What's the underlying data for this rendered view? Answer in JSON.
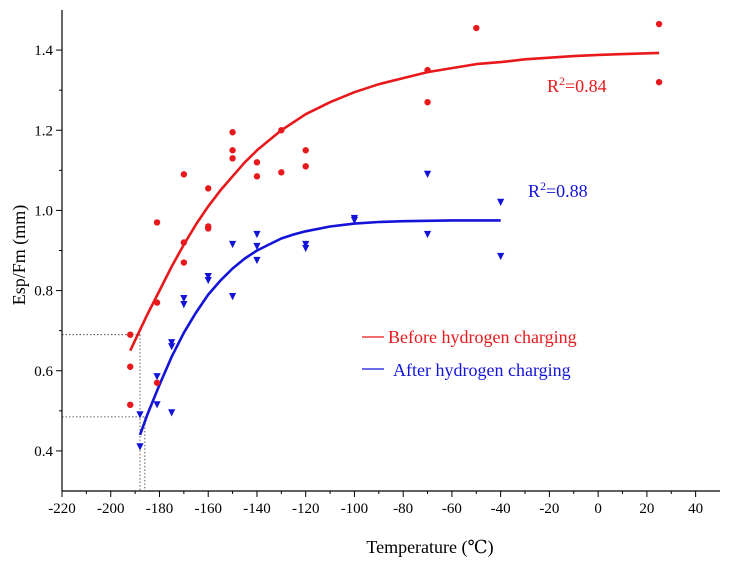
{
  "chart_data": {
    "type": "scatter",
    "xlabel": "Temperature (℃)",
    "ylabel": "Esp/Fm (mm)",
    "xlim": [
      -220,
      50
    ],
    "ylim": [
      0.3,
      1.5
    ],
    "xticks": [
      -220,
      -200,
      -180,
      -160,
      -140,
      -120,
      -100,
      -80,
      -60,
      -40,
      -20,
      0,
      20,
      40
    ],
    "yticks": [
      0.4,
      0.6,
      0.8,
      1.0,
      1.2,
      1.4
    ],
    "xtick_labels": [
      "-220",
      "-200",
      "-180",
      "-160",
      "-140",
      "-120",
      "-100",
      "-80",
      "-60",
      "-40",
      "-20",
      "0",
      "20",
      "40"
    ],
    "ytick_labels": [
      "0.4",
      "0.6",
      "0.8",
      "1.0",
      "1.2",
      "1.4"
    ],
    "legend_position": "right-center",
    "grid": false,
    "series": [
      {
        "name": "Before hydrogen charging",
        "color": "#e8191c",
        "marker": "circle",
        "points": [
          [
            -192,
            0.69
          ],
          [
            -192,
            0.61
          ],
          [
            -192,
            0.515
          ],
          [
            -181,
            0.97
          ],
          [
            -181,
            0.77
          ],
          [
            -181,
            0.57
          ],
          [
            -170,
            1.09
          ],
          [
            -170,
            0.92
          ],
          [
            -170,
            0.87
          ],
          [
            -160,
            1.055
          ],
          [
            -160,
            0.96
          ],
          [
            -160,
            0.955
          ],
          [
            -150,
            1.195
          ],
          [
            -150,
            1.15
          ],
          [
            -150,
            1.13
          ],
          [
            -140,
            1.12
          ],
          [
            -140,
            1.085
          ],
          [
            -130,
            1.2
          ],
          [
            -130,
            1.095
          ],
          [
            -120,
            1.15
          ],
          [
            -120,
            1.11
          ],
          [
            -70,
            1.35
          ],
          [
            -70,
            1.27
          ],
          [
            -50,
            1.455
          ],
          [
            25,
            1.465
          ],
          [
            25,
            1.32
          ]
        ],
        "fit_curve": [
          [
            -192,
            0.65
          ],
          [
            -185,
            0.74
          ],
          [
            -180,
            0.8
          ],
          [
            -175,
            0.86
          ],
          [
            -170,
            0.915
          ],
          [
            -165,
            0.965
          ],
          [
            -160,
            1.01
          ],
          [
            -155,
            1.05
          ],
          [
            -150,
            1.085
          ],
          [
            -145,
            1.12
          ],
          [
            -140,
            1.15
          ],
          [
            -130,
            1.2
          ],
          [
            -120,
            1.24
          ],
          [
            -110,
            1.27
          ],
          [
            -100,
            1.295
          ],
          [
            -90,
            1.315
          ],
          [
            -80,
            1.33
          ],
          [
            -70,
            1.345
          ],
          [
            -60,
            1.355
          ],
          [
            -50,
            1.365
          ],
          [
            -40,
            1.37
          ],
          [
            -30,
            1.377
          ],
          [
            -20,
            1.381
          ],
          [
            -10,
            1.385
          ],
          [
            0,
            1.388
          ],
          [
            10,
            1.39
          ],
          [
            25,
            1.393
          ]
        ],
        "r_squared_label": "R",
        "r_squared_sup": "2",
        "r_squared_value": "=0.84"
      },
      {
        "name": "After hydrogen charging",
        "color": "#1414d9",
        "marker": "triangle-down",
        "points": [
          [
            -188,
            0.49
          ],
          [
            -188,
            0.41
          ],
          [
            -181,
            0.585
          ],
          [
            -181,
            0.515
          ],
          [
            -175,
            0.67
          ],
          [
            -175,
            0.66
          ],
          [
            -175,
            0.495
          ],
          [
            -170,
            0.78
          ],
          [
            -170,
            0.765
          ],
          [
            -160,
            0.835
          ],
          [
            -160,
            0.825
          ],
          [
            -150,
            0.915
          ],
          [
            -150,
            0.785
          ],
          [
            -140,
            0.94
          ],
          [
            -140,
            0.91
          ],
          [
            -140,
            0.875
          ],
          [
            -120,
            0.915
          ],
          [
            -120,
            0.905
          ],
          [
            -100,
            0.98
          ],
          [
            -100,
            0.975
          ],
          [
            -70,
            1.09
          ],
          [
            -70,
            0.94
          ],
          [
            -40,
            1.02
          ],
          [
            -40,
            0.885
          ]
        ],
        "fit_curve": [
          [
            -188,
            0.44
          ],
          [
            -185,
            0.49
          ],
          [
            -180,
            0.565
          ],
          [
            -175,
            0.635
          ],
          [
            -170,
            0.695
          ],
          [
            -165,
            0.745
          ],
          [
            -160,
            0.79
          ],
          [
            -155,
            0.825
          ],
          [
            -150,
            0.855
          ],
          [
            -145,
            0.88
          ],
          [
            -140,
            0.9
          ],
          [
            -135,
            0.915
          ],
          [
            -130,
            0.93
          ],
          [
            -125,
            0.94
          ],
          [
            -120,
            0.948
          ],
          [
            -110,
            0.96
          ],
          [
            -100,
            0.967
          ],
          [
            -90,
            0.971
          ],
          [
            -80,
            0.973
          ],
          [
            -70,
            0.974
          ],
          [
            -60,
            0.975
          ],
          [
            -50,
            0.975
          ],
          [
            -40,
            0.975
          ]
        ],
        "r_squared_label": "R",
        "r_squared_sup": "2",
        "r_squared_value": "=0.88"
      }
    ],
    "reference_lines": [
      {
        "x": -188,
        "y": 0.69
      },
      {
        "x": -186,
        "y": 0.485
      }
    ]
  }
}
